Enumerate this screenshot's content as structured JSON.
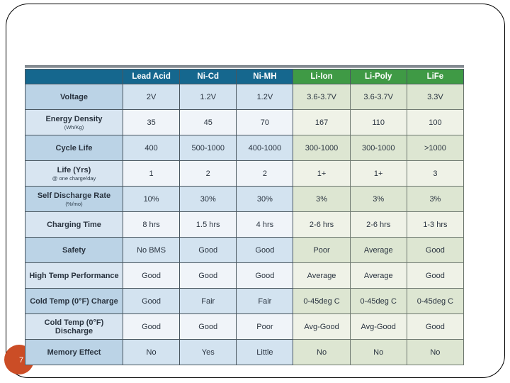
{
  "slide": {
    "page_number": "7"
  },
  "colors": {
    "header_blue": "#15678E",
    "header_green": "#3F9A45",
    "accent_circle": "#CB4D26",
    "label_dark_row": "#BBD3E6",
    "label_light_row": "#D8E5F1",
    "blue_cell_dark_row": "#D3E3F0",
    "blue_cell_light_row": "#F0F4F9",
    "green_cell_dark_row": "#DDE6D2",
    "green_cell_light_row": "#EFF2E7"
  },
  "table": {
    "columns": [
      {
        "label": "Lead Acid",
        "group": "blue"
      },
      {
        "label": "Ni-Cd",
        "group": "blue"
      },
      {
        "label": "Ni-MH",
        "group": "blue"
      },
      {
        "label": "Li-Ion",
        "group": "green"
      },
      {
        "label": "Li-Poly",
        "group": "green"
      },
      {
        "label": "LiFe",
        "group": "green"
      }
    ],
    "rows": [
      {
        "label": "Voltage",
        "sublabel": "",
        "values": [
          "2V",
          "1.2V",
          "1.2V",
          "3.6-3.7V",
          "3.6-3.7V",
          "3.3V"
        ]
      },
      {
        "label": "Energy Density",
        "sublabel": "(Wh/Kg)",
        "values": [
          "35",
          "45",
          "70",
          "167",
          "110",
          "100"
        ]
      },
      {
        "label": "Cycle Life",
        "sublabel": "",
        "values": [
          "400",
          "500-1000",
          "400-1000",
          "300-1000",
          "300-1000",
          ">1000"
        ]
      },
      {
        "label": "Life (Yrs)",
        "sublabel": "@ one charge/day",
        "values": [
          "1",
          "2",
          "2",
          "1+",
          "1+",
          "3"
        ]
      },
      {
        "label": "Self Discharge Rate",
        "sublabel": "(%/mo)",
        "values": [
          "10%",
          "30%",
          "30%",
          "3%",
          "3%",
          "3%"
        ]
      },
      {
        "label": "Charging Time",
        "sublabel": "",
        "values": [
          "8 hrs",
          "1.5 hrs",
          "4 hrs",
          "2-6 hrs",
          "2-6 hrs",
          "1-3 hrs"
        ]
      },
      {
        "label": "Safety",
        "sublabel": "",
        "values": [
          "No BMS",
          "Good",
          "Good",
          "Poor",
          "Average",
          "Good"
        ]
      },
      {
        "label": "High Temp Performance",
        "sublabel": "",
        "values": [
          "Good",
          "Good",
          "Good",
          "Average",
          "Average",
          "Good"
        ]
      },
      {
        "label": "Cold Temp (0°F) Charge",
        "sublabel": "",
        "values": [
          "Good",
          "Fair",
          "Fair",
          "0-45deg C",
          "0-45deg C",
          "0-45deg C"
        ]
      },
      {
        "label": "Cold Temp (0°F) Discharge",
        "sublabel": "",
        "values": [
          "Good",
          "Good",
          "Poor",
          "Avg-Good",
          "Avg-Good",
          "Good"
        ]
      },
      {
        "label": "Memory Effect",
        "sublabel": "",
        "values": [
          "No",
          "Yes",
          "Little",
          "No",
          "No",
          "No"
        ]
      }
    ]
  }
}
